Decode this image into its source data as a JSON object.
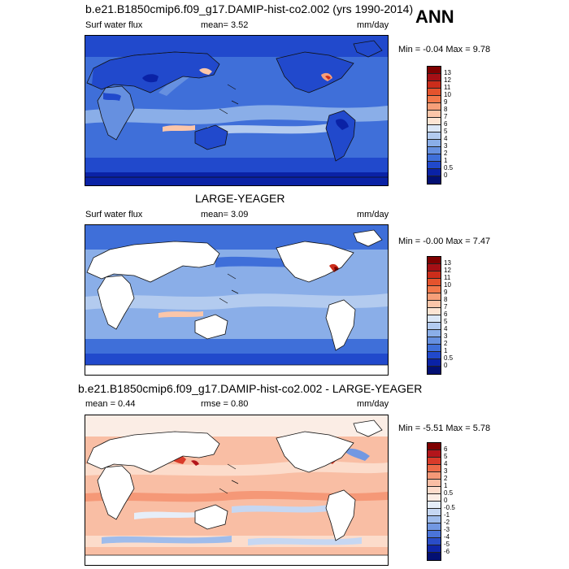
{
  "season": "ANN",
  "panels": [
    {
      "title": "b.e21.B1850cmip6.f09_g17.DAMIP-hist-co2.002 (yrs 1990-2014)",
      "left_label": "Surf water flux",
      "center_label": "mean=   3.52",
      "units": "mm/day",
      "minmax": "Min =  -0.04 Max =   9.78",
      "colorbar_labels": [
        "13",
        "12",
        "11",
        "10",
        "9",
        "8",
        "7",
        "6",
        "5",
        "4",
        "3",
        "2",
        "1",
        "0.5",
        "0"
      ],
      "colorbar_colors": [
        "#7f0000",
        "#a50f15",
        "#cb2d1b",
        "#e4532d",
        "#f2784b",
        "#f79f79",
        "#fbc6a9",
        "#fde5d3",
        "#dbe7f6",
        "#b3cbef",
        "#8aaee8",
        "#6690e0",
        "#3f6fd9",
        "#2149cc",
        "#0a22a6",
        "#031073"
      ]
    },
    {
      "title": "LARGE-YEAGER",
      "left_label": "Surf water flux",
      "center_label": "mean=   3.09",
      "units": "mm/day",
      "minmax": "Min =  -0.00 Max =   7.47",
      "colorbar_labels": [
        "13",
        "12",
        "11",
        "10",
        "9",
        "8",
        "7",
        "6",
        "5",
        "4",
        "3",
        "2",
        "1",
        "0.5",
        "0"
      ],
      "colorbar_colors": [
        "#7f0000",
        "#a50f15",
        "#cb2d1b",
        "#e4532d",
        "#f2784b",
        "#f79f79",
        "#fbc6a9",
        "#fde5d3",
        "#dbe7f6",
        "#b3cbef",
        "#8aaee8",
        "#6690e0",
        "#3f6fd9",
        "#2149cc",
        "#0a22a6",
        "#031073"
      ]
    },
    {
      "title": "b.e21.B1850cmip6.f09_g17.DAMIP-hist-co2.002 - LARGE-YEAGER",
      "left_label": "mean =   0.44",
      "center_label": "rmse =   0.80",
      "units": "mm/day",
      "minmax": "Min =  -5.51 Max =   5.78",
      "colorbar_labels": [
        "6",
        "5",
        "4",
        "3",
        "2",
        "1",
        "0.5",
        "0",
        "-0.5",
        "-1",
        "-2",
        "-3",
        "-4",
        "-5",
        "-6"
      ],
      "colorbar_colors": [
        "#7f0000",
        "#b3151b",
        "#d93b2a",
        "#ed6a48",
        "#f59877",
        "#f9bea4",
        "#fcdccb",
        "#fbede5",
        "#e6eef9",
        "#c6d7f2",
        "#9fbceb",
        "#7298e2",
        "#4b74d9",
        "#2a4dc8",
        "#0f26a8",
        "#031073"
      ]
    }
  ]
}
